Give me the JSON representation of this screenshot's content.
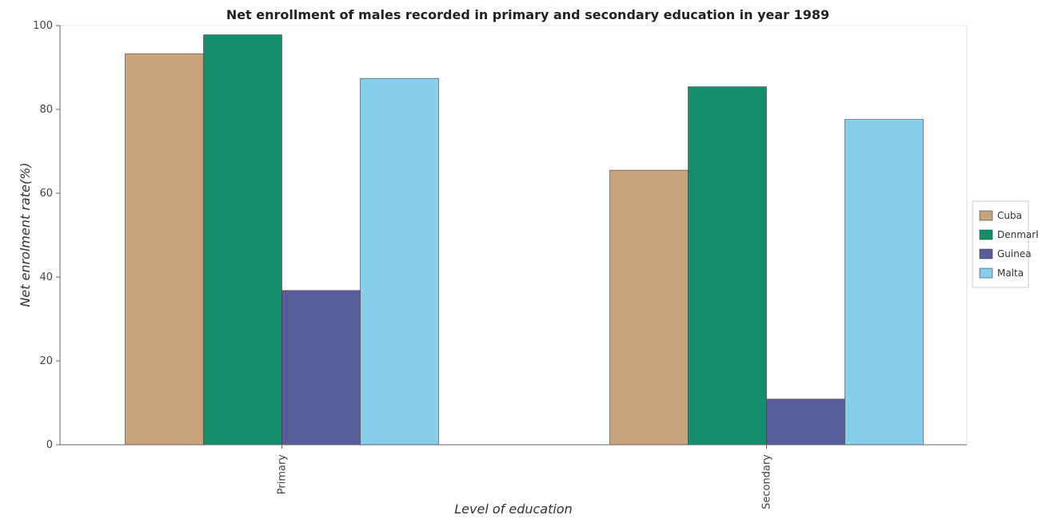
{
  "chart_data": {
    "type": "bar",
    "title": "Net enrollment of males recorded in primary and secondary education in year 1989",
    "xlabel": "Level of education",
    "ylabel": "Net enrolment rate(%)",
    "ylim": [
      0,
      100
    ],
    "yticks": [
      0,
      20,
      40,
      60,
      80,
      100
    ],
    "categories": [
      "Primary",
      "Secondary"
    ],
    "series": [
      {
        "name": "Cuba",
        "color": "#c8a47e",
        "values": [
          93.3,
          65.5
        ]
      },
      {
        "name": "Denmark",
        "color": "#138f6b",
        "values": [
          97.8,
          85.4
        ]
      },
      {
        "name": "Guinea",
        "color": "#5a5d9c",
        "values": [
          36.8,
          10.9
        ]
      },
      {
        "name": "Malta",
        "color": "#87ceeb",
        "values": [
          87.4,
          77.6
        ]
      }
    ],
    "legend_position": "right",
    "grid": false
  }
}
